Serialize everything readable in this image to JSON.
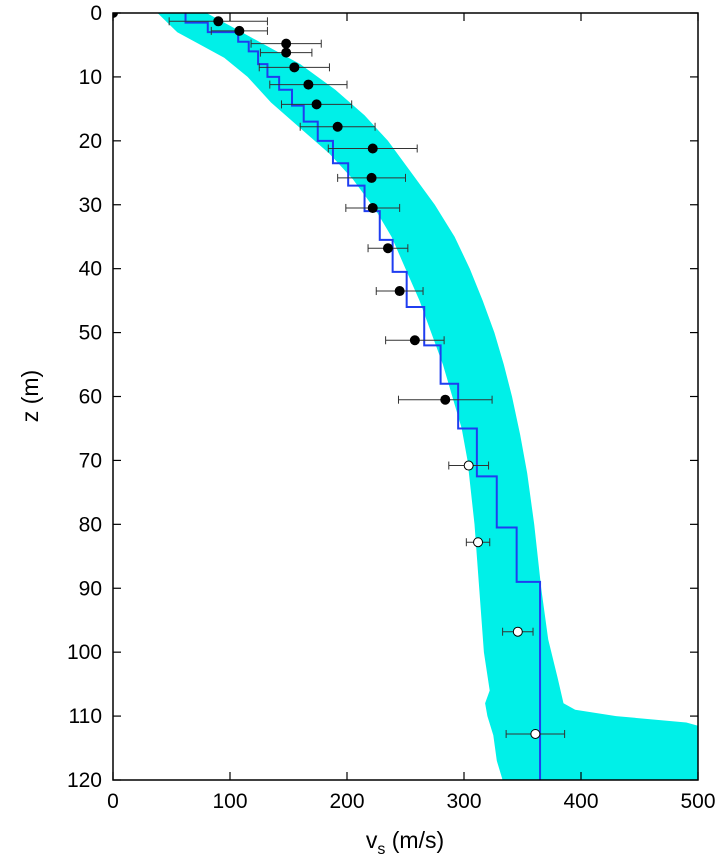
{
  "chart_data": {
    "type": "scatter",
    "title": "",
    "xlabel_main": "v",
    "xlabel_sub": "s",
    "xlabel_unit": " (m/s)",
    "ylabel": "z (m)",
    "xlim": [
      0,
      500
    ],
    "ylim": [
      0,
      120
    ],
    "y_inverted": true,
    "x_ticks": [
      0,
      100,
      200,
      300,
      400,
      500
    ],
    "y_ticks": [
      0,
      10,
      20,
      30,
      40,
      50,
      60,
      70,
      80,
      90,
      100,
      110,
      120
    ],
    "grid": false,
    "legend": "none",
    "colors": {
      "band": "#00f0e8",
      "profile": "#1f3df0",
      "points": "#000000",
      "errorbars": "#333333"
    },
    "uncertainty_band": {
      "left": [
        [
          38,
          0
        ],
        [
          55,
          3
        ],
        [
          75,
          5
        ],
        [
          95,
          7
        ],
        [
          115,
          10
        ],
        [
          135,
          14
        ],
        [
          160,
          18
        ],
        [
          185,
          22
        ],
        [
          205,
          26
        ],
        [
          225,
          31
        ],
        [
          238,
          35
        ],
        [
          250,
          40
        ],
        [
          262,
          45
        ],
        [
          272,
          50
        ],
        [
          282,
          55
        ],
        [
          290,
          60
        ],
        [
          298,
          65
        ],
        [
          303,
          70
        ],
        [
          309,
          80
        ],
        [
          313,
          90
        ],
        [
          317,
          100
        ],
        [
          322,
          106
        ],
        [
          318,
          108
        ],
        [
          320,
          110
        ],
        [
          325,
          113
        ],
        [
          328,
          117
        ],
        [
          333,
          120
        ]
      ],
      "right": [
        [
          80,
          0
        ],
        [
          100,
          2
        ],
        [
          130,
          5
        ],
        [
          160,
          8
        ],
        [
          190,
          12
        ],
        [
          215,
          16
        ],
        [
          235,
          20
        ],
        [
          255,
          25
        ],
        [
          275,
          30
        ],
        [
          292,
          35
        ],
        [
          305,
          40
        ],
        [
          316,
          45
        ],
        [
          326,
          50
        ],
        [
          334,
          55
        ],
        [
          341,
          60
        ],
        [
          348,
          66
        ],
        [
          354,
          72
        ],
        [
          360,
          80
        ],
        [
          366,
          90
        ],
        [
          372,
          98
        ],
        [
          380,
          104
        ],
        [
          385,
          108
        ],
        [
          395,
          109
        ],
        [
          430,
          110
        ],
        [
          490,
          111
        ],
        [
          500,
          111.5
        ],
        [
          500,
          120
        ]
      ]
    },
    "profile_steps": [
      [
        0,
        62
      ],
      [
        1.5,
        81
      ],
      [
        3,
        107
      ],
      [
        4.5,
        116
      ],
      [
        6,
        124
      ],
      [
        8,
        132
      ],
      [
        10,
        142
      ],
      [
        12,
        153
      ],
      [
        14.5,
        163
      ],
      [
        17,
        175
      ],
      [
        20,
        188
      ],
      [
        23.5,
        201
      ],
      [
        27,
        215
      ],
      [
        31,
        228
      ],
      [
        35.5,
        239
      ],
      [
        40.5,
        251
      ],
      [
        46,
        266
      ],
      [
        52,
        280
      ],
      [
        58,
        295
      ],
      [
        65,
        311
      ],
      [
        72.5,
        328
      ],
      [
        80.5,
        345
      ],
      [
        89,
        365
      ],
      [
        120,
        365
      ]
    ],
    "series": [
      {
        "marker": "filled",
        "points": [
          {
            "x": 0,
            "y": 0,
            "xerr": 0
          },
          {
            "x": 90,
            "y": 1.3,
            "xerr": 42
          },
          {
            "x": 108,
            "y": 2.8,
            "xerr": 24
          },
          {
            "x": 148,
            "y": 4.8,
            "xerr": 30
          },
          {
            "x": 148,
            "y": 6.2,
            "xerr": 22
          },
          {
            "x": 155,
            "y": 8.5,
            "xerr": 30
          },
          {
            "x": 167,
            "y": 11.2,
            "xerr": 33
          },
          {
            "x": 174,
            "y": 14.3,
            "xerr": 30
          },
          {
            "x": 192,
            "y": 17.8,
            "xerr": 32
          },
          {
            "x": 222,
            "y": 21.2,
            "xerr": 38
          },
          {
            "x": 221,
            "y": 25.8,
            "xerr": 29
          },
          {
            "x": 222,
            "y": 30.5,
            "xerr": 23
          },
          {
            "x": 235,
            "y": 36.8,
            "xerr": 17
          },
          {
            "x": 245,
            "y": 43.5,
            "xerr": 20
          },
          {
            "x": 258,
            "y": 51.2,
            "xerr": 25
          },
          {
            "x": 284,
            "y": 60.5,
            "xerr": 40
          }
        ]
      },
      {
        "marker": "open",
        "points": [
          {
            "x": 304,
            "y": 70.8,
            "xerr": 17
          },
          {
            "x": 312,
            "y": 82.8,
            "xerr": 10
          },
          {
            "x": 346,
            "y": 96.8,
            "xerr": 13
          },
          {
            "x": 361,
            "y": 112.8,
            "xerr": 25
          }
        ]
      }
    ]
  }
}
